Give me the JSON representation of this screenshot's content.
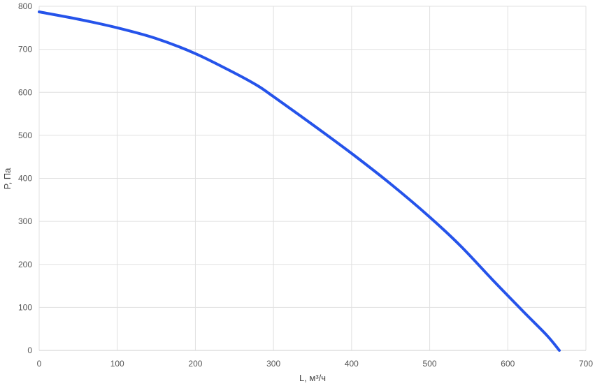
{
  "chart_data": {
    "type": "line",
    "title": "",
    "xlabel": "L, м³/ч",
    "ylabel": "P, Па",
    "xlim": [
      0,
      700
    ],
    "ylim": [
      0,
      800
    ],
    "x_ticks": [
      "0",
      "100",
      "200",
      "300",
      "400",
      "500",
      "600",
      "700"
    ],
    "y_ticks": [
      "0",
      "100",
      "200",
      "300",
      "400",
      "500",
      "600",
      "700",
      "800"
    ],
    "grid": true,
    "legend": "none",
    "series": [
      {
        "color": "#2553ea",
        "x": [
          0,
          50,
          100,
          150,
          200,
          250,
          280,
          300,
          350,
          400,
          450,
          500,
          540,
          580,
          620,
          650,
          666
        ],
        "y": [
          787,
          770,
          750,
          725,
          690,
          645,
          615,
          590,
          525,
          458,
          387,
          310,
          242,
          165,
          90,
          35,
          0
        ]
      }
    ]
  }
}
